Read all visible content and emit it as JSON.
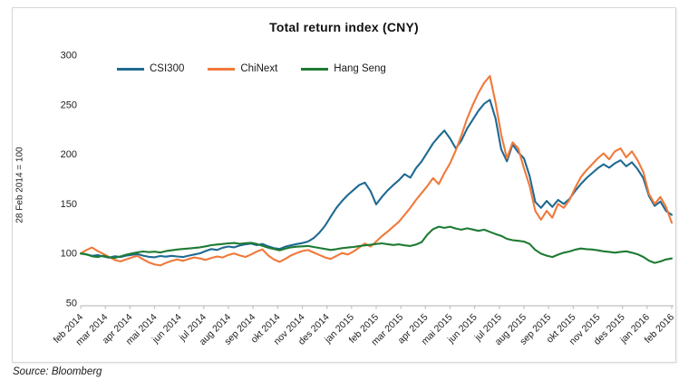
{
  "figure": {
    "title": "Total return index (CNY)",
    "y_axis_label": "28 Feb 2014 = 100",
    "source_note": "Source: Bloomberg"
  },
  "chart_data": {
    "type": "line",
    "title": "Total return index (CNY)",
    "ylabel": "28 Feb 2014 = 100",
    "xlabel": "",
    "ylim": [
      50,
      300
    ],
    "y_ticks": [
      300,
      250,
      200,
      150,
      100,
      50
    ],
    "grid": false,
    "legend_position": "top-left-inside",
    "x_sampling": "weekly points from feb 2014 to feb 2016",
    "x_tick_labels": [
      "feb 2014",
      "mar 2014",
      "apr 2014",
      "mai 2014",
      "jun 2014",
      "jul 2014",
      "aug 2014",
      "sep 2014",
      "okt 2014",
      "nov 2014",
      "des 2014",
      "jan 2015",
      "feb 2015",
      "mar 2015",
      "apr 2015",
      "mai 2015",
      "jun 2015",
      "jul 2015",
      "aug 2015",
      "sep 2015",
      "okt 2015",
      "nov 2015",
      "des 2015",
      "jan 2016",
      "feb 2016"
    ],
    "axis_color": "#c0c0c0",
    "text_color": "#222222",
    "series": [
      {
        "name": "CSI300",
        "color": "#1f6a92",
        "values": [
          100,
          99.2,
          97.6,
          98.4,
          97.0,
          95.8,
          97.2,
          96.4,
          97.8,
          98.6,
          99.4,
          97.8,
          96.6,
          96.2,
          97.4,
          96.8,
          97.6,
          97.0,
          96.4,
          97.8,
          99.0,
          100.2,
          102.5,
          104.5,
          103.6,
          105.8,
          107.0,
          106.2,
          108.0,
          109.2,
          110.0,
          108.4,
          109.6,
          107.2,
          105.4,
          104.6,
          106.8,
          108.2,
          109.5,
          110.5,
          112.0,
          115.5,
          121.0,
          128.0,
          137.0,
          146.0,
          153.0,
          159.0,
          164.0,
          169.0,
          171.5,
          163.0,
          149.5,
          157.0,
          163.5,
          169.0,
          174.0,
          180.0,
          176.5,
          186.0,
          193.0,
          202.0,
          211.0,
          218.0,
          224.0,
          216.0,
          206.0,
          214.0,
          226.0,
          235.0,
          244.0,
          251.0,
          255.0,
          236.0,
          205.0,
          193.0,
          210.0,
          202.0,
          196.0,
          178.0,
          152.0,
          146.0,
          153.0,
          147.0,
          154.0,
          150.0,
          155.0,
          163.0,
          170.0,
          176.0,
          181.0,
          186.0,
          190.0,
          186.5,
          191.0,
          194.0,
          188.0,
          192.0,
          185.0,
          176.0,
          158.0,
          148.0,
          152.5,
          143.0,
          139.0
        ]
      },
      {
        "name": "ChiNext",
        "color": "#f0793a",
        "values": [
          100,
          103.5,
          106.0,
          102.5,
          99.5,
          96.5,
          93.5,
          92.0,
          94.0,
          96.0,
          97.5,
          94.0,
          91.0,
          89.0,
          88.0,
          90.5,
          92.5,
          94.0,
          92.5,
          94.5,
          96.0,
          95.0,
          93.5,
          95.5,
          97.0,
          96.0,
          98.5,
          100.0,
          98.0,
          96.5,
          99.0,
          102.0,
          104.0,
          98.0,
          94.0,
          91.5,
          94.5,
          98.0,
          100.5,
          102.5,
          103.5,
          101.0,
          98.5,
          96.0,
          94.5,
          97.5,
          100.5,
          99.0,
          102.0,
          106.0,
          110.0,
          107.0,
          112.0,
          117.5,
          122.0,
          127.0,
          132.0,
          139.0,
          146.0,
          154.0,
          161.0,
          168.0,
          176.0,
          170.0,
          181.0,
          191.0,
          204.0,
          219.0,
          236.0,
          250.0,
          262.0,
          272.0,
          279.0,
          252.0,
          220.0,
          196.0,
          212.0,
          206.0,
          186.0,
          168.0,
          143.0,
          134.0,
          143.0,
          136.0,
          150.0,
          146.0,
          154.0,
          166.0,
          177.0,
          184.0,
          190.0,
          196.0,
          201.0,
          195.0,
          203.0,
          206.0,
          197.0,
          203.0,
          194.0,
          182.0,
          160.0,
          150.0,
          157.0,
          147.0,
          131.0
        ]
      },
      {
        "name": "Hang Seng",
        "color": "#1e7b33",
        "values": [
          100,
          99.0,
          97.2,
          96.4,
          97.8,
          96.2,
          95.6,
          97.0,
          98.8,
          100.0,
          101.2,
          102.0,
          101.4,
          101.8,
          101.0,
          102.4,
          103.2,
          104.0,
          104.6,
          105.0,
          105.6,
          106.2,
          107.2,
          108.4,
          109.0,
          109.6,
          110.2,
          110.6,
          109.8,
          110.4,
          110.8,
          109.6,
          107.8,
          105.8,
          104.6,
          103.2,
          104.8,
          106.2,
          106.8,
          107.2,
          107.6,
          106.6,
          105.6,
          104.6,
          103.6,
          104.4,
          105.4,
          106.0,
          106.6,
          107.4,
          108.2,
          108.8,
          109.6,
          110.2,
          109.4,
          108.6,
          109.2,
          108.2,
          107.6,
          109.0,
          111.5,
          119.0,
          124.5,
          127.0,
          125.8,
          127.0,
          125.2,
          124.0,
          125.4,
          124.2,
          122.8,
          124.0,
          121.8,
          119.6,
          117.8,
          114.8,
          113.4,
          112.8,
          112.0,
          109.6,
          103.6,
          99.8,
          97.8,
          96.4,
          98.8,
          100.8,
          102.0,
          103.8,
          105.0,
          104.4,
          104.0,
          103.2,
          102.2,
          101.6,
          100.8,
          101.6,
          102.2,
          100.8,
          99.2,
          96.5,
          92.8,
          90.5,
          92.0,
          94.0,
          95.0
        ]
      }
    ]
  }
}
